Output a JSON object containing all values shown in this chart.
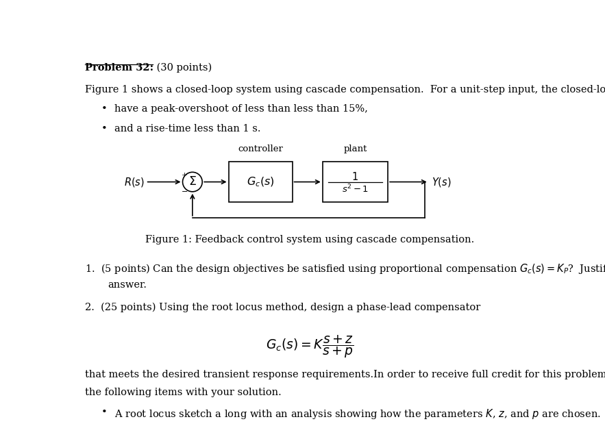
{
  "background_color": "#ffffff",
  "fig_width": 8.83,
  "fig_height": 6.22,
  "body_fontsize": 10.5,
  "diagram_caption": "Figure 1: Feedback control system using cascade compensation.",
  "title": "Problem 32:",
  "title_suffix": " (30 points)"
}
